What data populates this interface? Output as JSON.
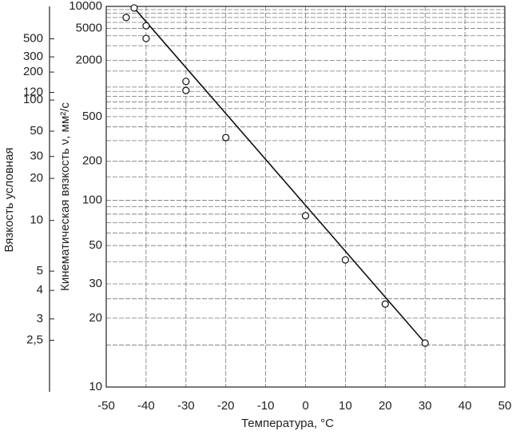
{
  "chart_data": {
    "type": "scatter",
    "xlabel": "Температура, °С",
    "ylabel": "Кинематическая вязкость ν, мм²/с",
    "y2label": "Вязкость условная",
    "xlim": [
      -50,
      50
    ],
    "xticks": [
      -50,
      -40,
      -30,
      -20,
      -10,
      0,
      10,
      20,
      30,
      40,
      50
    ],
    "ylim": [
      10,
      10000
    ],
    "yscale": "loglog",
    "yticks": [
      10,
      20,
      30,
      50,
      100,
      200,
      500,
      2000,
      5000,
      10000
    ],
    "ygrid": [
      15,
      25,
      40,
      60,
      70,
      80,
      90,
      150,
      300,
      400,
      600,
      700,
      800,
      900,
      1000,
      1500,
      3000,
      4000,
      6000,
      7000,
      8000,
      9000
    ],
    "y2scale": "engler",
    "y2ticks": [
      {
        "value": 2.5,
        "label": "2,5"
      },
      3,
      4,
      5,
      10,
      20,
      30,
      50,
      100,
      120,
      200,
      300,
      500
    ],
    "grid": true,
    "color": "#111111",
    "series": [
      {
        "type": "scatter",
        "x": [
          -45,
          -43,
          -40,
          -40,
          -30,
          -30,
          -20,
          0,
          10,
          20,
          30
        ],
        "values": [
          7000,
          9500,
          5400,
          3700,
          1150,
          920,
          320,
          78,
          41,
          23.5,
          15.3
        ]
      },
      {
        "type": "line",
        "x": [
          -43,
          30
        ],
        "values": [
          9500,
          15.3
        ]
      }
    ]
  }
}
